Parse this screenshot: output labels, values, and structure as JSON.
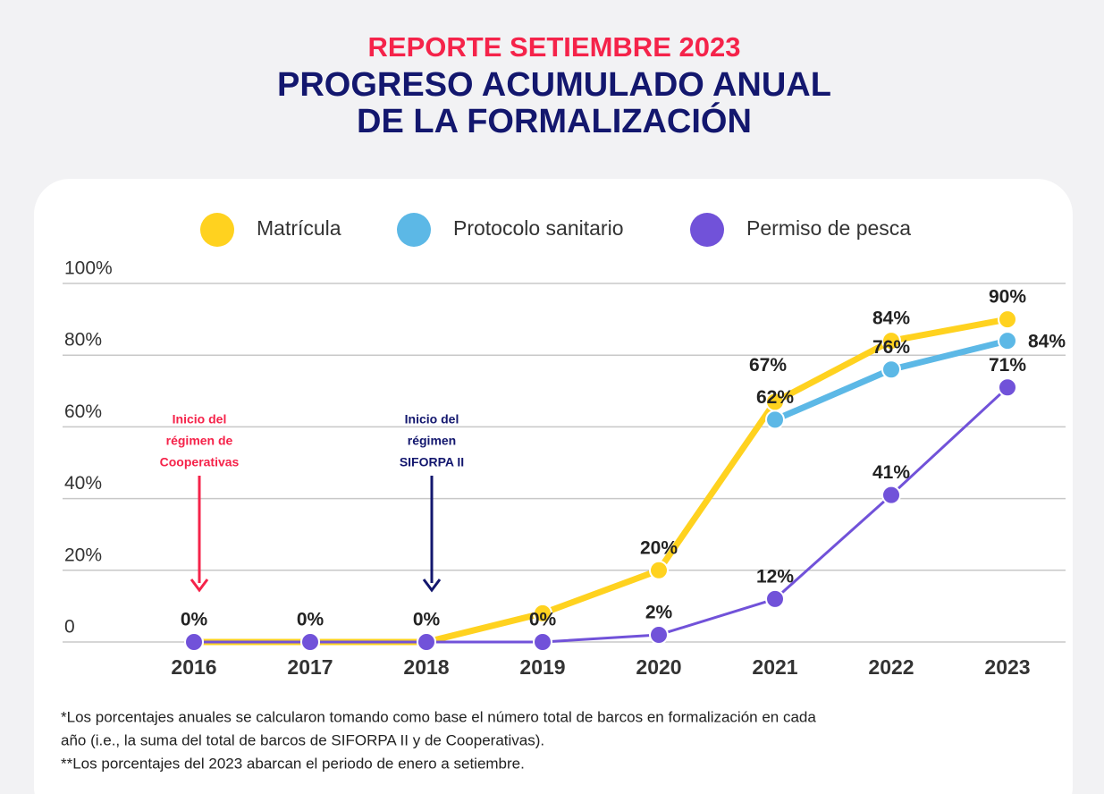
{
  "chart_data": {
    "type": "line",
    "title": "REPORTE SETIEMBRE 2023",
    "subtitle": [
      "PROGRESO  ACUMULADO ANUAL",
      "DE LA FORMALIZACIÓN"
    ],
    "categories": [
      "2016",
      "2017",
      "2018",
      "2019",
      "2020",
      "2021",
      "2022",
      "2023"
    ],
    "series": [
      {
        "name": "Matrícula",
        "color": "#ffd21f",
        "values": [
          0,
          0,
          0,
          8,
          20,
          67,
          84,
          90
        ],
        "value_labels": [
          null,
          null,
          null,
          null,
          "20%",
          "67%",
          "84%",
          "90%"
        ]
      },
      {
        "name": "Protocolo sanitario",
        "color": "#5cb8e6",
        "values": [
          null,
          null,
          null,
          null,
          null,
          62,
          76,
          84
        ],
        "value_labels": [
          null,
          null,
          null,
          null,
          null,
          "62%",
          "76%",
          "84%"
        ]
      },
      {
        "name": "Permiso de pesca",
        "color": "#7152d9",
        "values": [
          0,
          0,
          0,
          0,
          2,
          12,
          41,
          71
        ],
        "value_labels": [
          "0%",
          "0%",
          "0%",
          "0%",
          "2%",
          "12%",
          "41%",
          "71%"
        ]
      }
    ],
    "ylim": [
      0,
      100
    ],
    "yticks": [
      0,
      {
        "value": 20,
        "label": "20%"
      },
      {
        "value": 40,
        "label": "40%"
      },
      {
        "value": 60,
        "label": "60%"
      },
      {
        "value": 80,
        "label": "80%"
      },
      {
        "value": 100,
        "label": "100%"
      }
    ],
    "grid": true,
    "legend": "top",
    "annotations": [
      {
        "text": [
          "Inicio del",
          "régimen de",
          "Cooperativas"
        ],
        "color": "#f5234a"
      },
      {
        "text": [
          "Inicio del",
          "régimen",
          "SIFORPA II"
        ],
        "color": "#13176e"
      }
    ],
    "footnotes": [
      "*Los porcentajes anuales se calcularon tomando como base el número total de barcos en formalización en cada",
      "año (i.e., la suma del total de barcos de SIFORPA II y de Cooperativas).",
      "**Los porcentajes del 2023 abarcan el periodo de enero a setiembre."
    ]
  }
}
